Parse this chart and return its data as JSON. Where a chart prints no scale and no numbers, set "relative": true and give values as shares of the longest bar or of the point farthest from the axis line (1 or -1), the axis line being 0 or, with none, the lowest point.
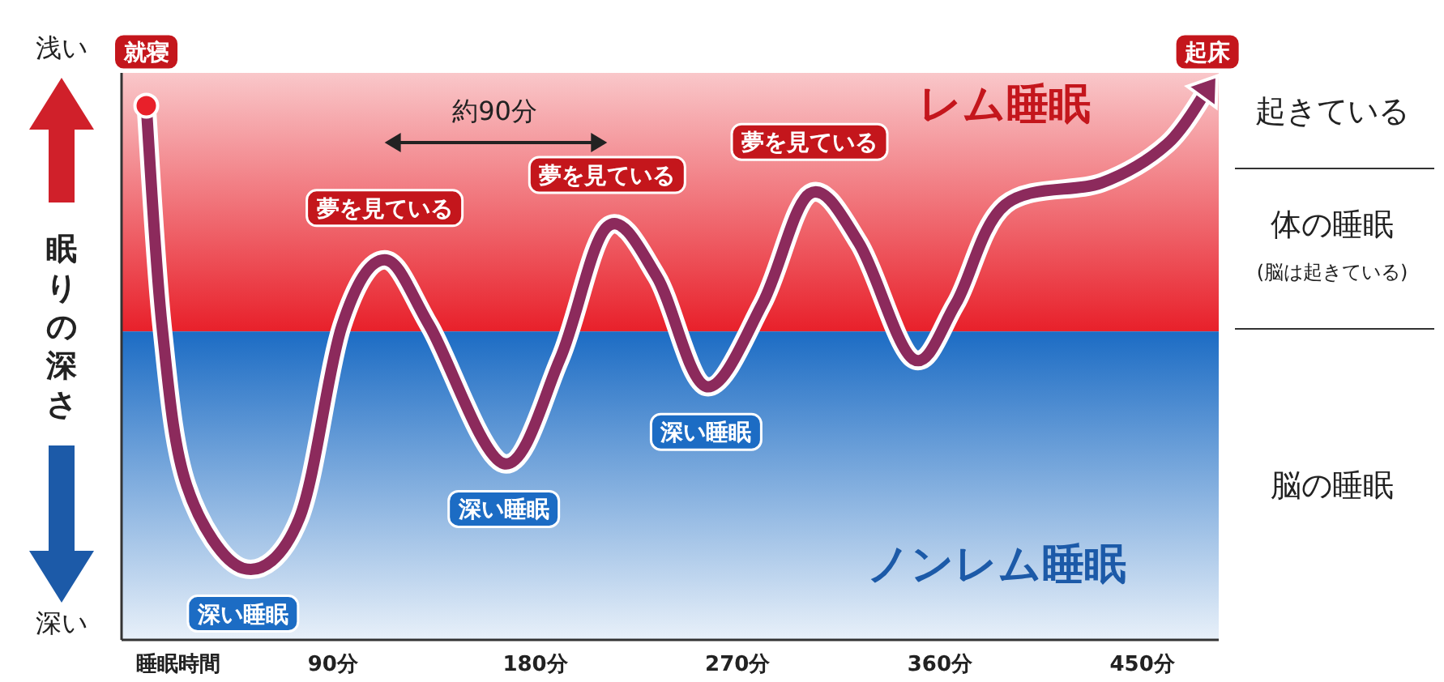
{
  "chart_data": {
    "type": "line",
    "relative": true,
    "xlabel": "睡眠時間",
    "ylabel": "眠りの深さ",
    "xlim": [
      -4,
      484
    ],
    "xticks": [
      {
        "value": 90,
        "label": "90分"
      },
      {
        "value": 180,
        "label": "180分"
      },
      {
        "value": 270,
        "label": "270分"
      },
      {
        "value": 360,
        "label": "360分"
      },
      {
        "value": 450,
        "label": "450分"
      }
    ],
    "series": [
      {
        "color": "#8c2a5c",
        "x": [
          7,
          14,
          25,
          50,
          75,
          94,
          113,
          133,
          166,
          191,
          212,
          234,
          256,
          281,
          302,
          324,
          348,
          367,
          389,
          432,
          461,
          479
        ],
        "values": [
          0.97,
          0.57,
          0.28,
          0.13,
          0.22,
          0.57,
          0.69,
          0.57,
          0.32,
          0.51,
          0.75,
          0.66,
          0.46,
          0.61,
          0.81,
          0.72,
          0.51,
          0.61,
          0.79,
          0.83,
          0.9,
          1
        ]
      }
    ],
    "bands": [
      {
        "axis": "y",
        "from": 0.56,
        "to": 1.03,
        "label": "レム睡眠",
        "color": "#e8202a"
      },
      {
        "axis": "y",
        "from": 0,
        "to": 0.56,
        "label": "ノンレム睡眠",
        "color": "#1c6cc4"
      }
    ],
    "annotations": [
      {
        "text": "就寝",
        "x": 7,
        "y": 0.97
      },
      {
        "text": "起床",
        "x": 479,
        "y": 1
      },
      {
        "text": "夢を見ている",
        "x": 113,
        "y": 0.69
      },
      {
        "text": "夢を見ている",
        "x": 212,
        "y": 0.75
      },
      {
        "text": "夢を見ている",
        "x": 302,
        "y": 0.81
      },
      {
        "text": "深い睡眠",
        "x": 50,
        "y": 0.13
      },
      {
        "text": "深い睡眠",
        "x": 166,
        "y": 0.32
      },
      {
        "text": "深い睡眠",
        "x": 256,
        "y": 0.46
      },
      "浅い",
      "深い",
      "約90分",
      "起きている",
      "体の睡眠",
      "(脳は起きている)",
      "脳の睡眠"
    ]
  }
}
